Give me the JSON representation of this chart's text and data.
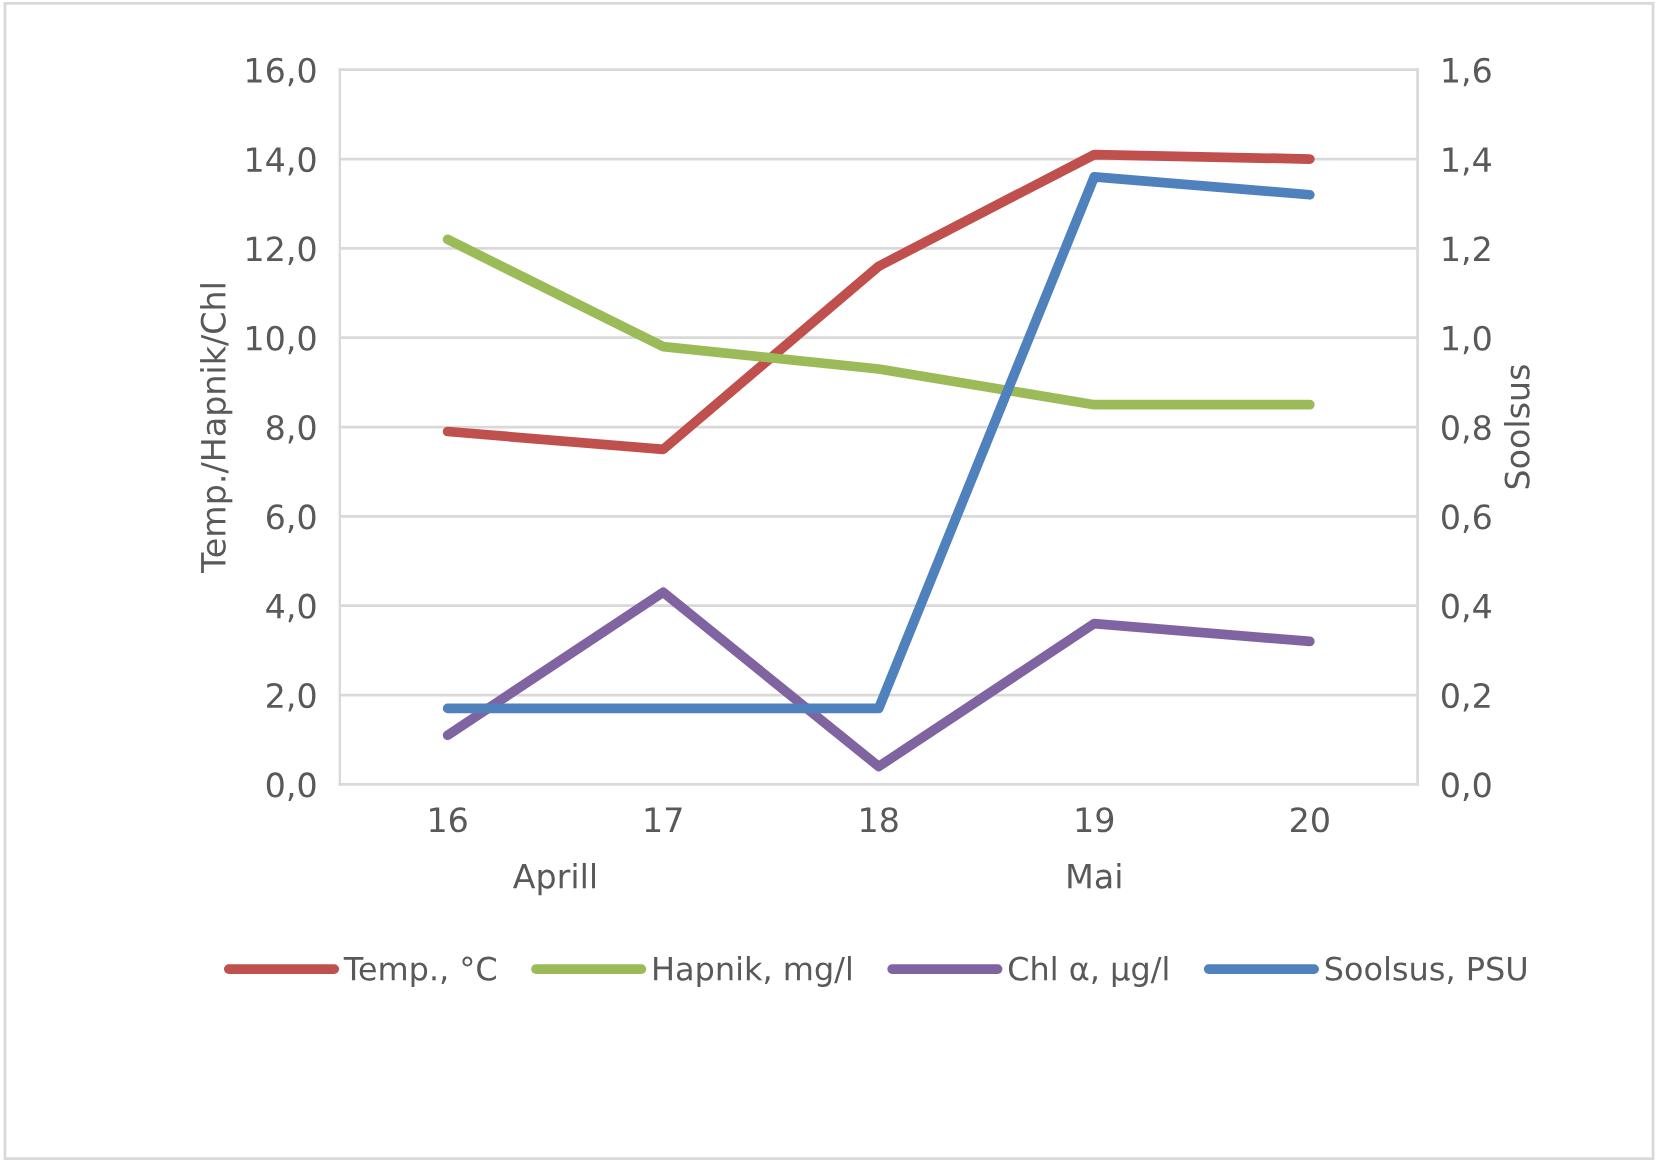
{
  "chart_data": {
    "type": "line",
    "ylabel": "Temp./Hapnik/Chl",
    "y2label": "Soolsus",
    "categories": [
      "16",
      "17",
      "18",
      "19",
      "20"
    ],
    "series": [
      {
        "name": "Temp., °C",
        "color": "#c0504d",
        "values": [
          7.9,
          7.5,
          11.6,
          14.1,
          14.0
        ]
      },
      {
        "name": "Hapnik, mg/l",
        "color": "#9bbb59",
        "values": [
          12.2,
          9.8,
          9.3,
          8.5,
          8.5
        ]
      },
      {
        "name": "Chl α, µg/l",
        "color": "#8064a2",
        "values": [
          1.1,
          4.3,
          0.4,
          3.6,
          3.2
        ]
      },
      {
        "name": "Soolsus, PSU",
        "color": "#4f81bd",
        "axis": "y2",
        "values": [
          0.17,
          0.17,
          0.17,
          1.36,
          1.32
        ]
      }
    ],
    "ylim": [
      0,
      16
    ],
    "yticks": [
      {
        "value": 0,
        "label": "0,0"
      },
      {
        "value": 2,
        "label": "2,0"
      },
      {
        "value": 4,
        "label": "4,0"
      },
      {
        "value": 6,
        "label": "6,0"
      },
      {
        "value": 8,
        "label": "8,0"
      },
      {
        "value": 10,
        "label": "10,0"
      },
      {
        "value": 12,
        "label": "12,0"
      },
      {
        "value": 14,
        "label": "14,0"
      },
      {
        "value": 16,
        "label": "16,0"
      }
    ],
    "y2lim": [
      0,
      1.6
    ],
    "y2ticks": [
      {
        "value": 0,
        "label": "0,0"
      },
      {
        "value": 0.2,
        "label": "0,2"
      },
      {
        "value": 0.4,
        "label": "0,4"
      },
      {
        "value": 0.6,
        "label": "0,6"
      },
      {
        "value": 0.8,
        "label": "0,8"
      },
      {
        "value": 1.0,
        "label": "1,0"
      },
      {
        "value": 1.2,
        "label": "1,2"
      },
      {
        "value": 1.4,
        "label": "1,4"
      },
      {
        "value": 1.6,
        "label": "1,6"
      }
    ],
    "annotations": [
      "Aprill",
      "Mai"
    ],
    "grid": "y",
    "legend": "bottom",
    "marker": "none",
    "line_style": "solid"
  }
}
